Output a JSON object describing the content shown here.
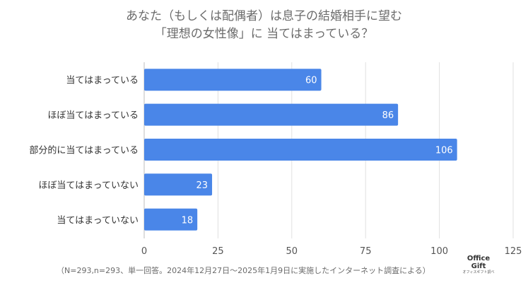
{
  "chart_data": {
    "type": "bar",
    "orientation": "horizontal",
    "title_lines": [
      "あなた（もしくは配偶者）は息子の結婚相手に望む",
      "「理想の女性像」に 当てはまっている？"
    ],
    "categories": [
      "当てはまっている",
      "ほぼ当てはまっている",
      "部分的に当てはまっている",
      "ほぼ当てはまっていない",
      "当てはまっていない"
    ],
    "values": [
      60,
      86,
      106,
      23,
      18
    ],
    "xlim": [
      0,
      125
    ],
    "xticks": [
      0,
      25,
      50,
      75,
      100,
      125
    ],
    "grid": true,
    "bar_color": "#4a86e8"
  },
  "footnote": "（N=293,n=293、単一回答。2024年12月27日～2025年1月9日に実施したインターネット調査による）",
  "logo": {
    "line1": "Office",
    "line2": "Gift",
    "line3": "オフィスギフト調べ"
  }
}
